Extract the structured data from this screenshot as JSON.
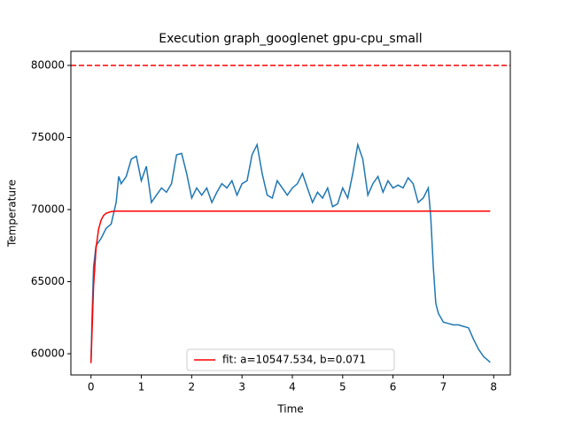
{
  "chart_data": {
    "type": "line",
    "title": "Execution graph_googlenet gpu-cpu_small",
    "xlabel": "Time",
    "ylabel": "Temperature",
    "xlim": [
      -0.4,
      8.33
    ],
    "ylim": [
      58530,
      80980
    ],
    "xticks": [
      0,
      1,
      2,
      3,
      4,
      5,
      6,
      7,
      8
    ],
    "yticks": [
      60000,
      65000,
      70000,
      75000,
      80000
    ],
    "legend": "lower center",
    "hlines": [
      {
        "value": 80000,
        "color": "#ff0000",
        "style": "dashed"
      }
    ],
    "series": [
      {
        "color": "#1f77b4",
        "x": [
          0,
          0.02,
          0.05,
          0.1,
          0.2,
          0.3,
          0.4,
          0.5,
          0.55,
          0.6,
          0.7,
          0.8,
          0.9,
          1.0,
          1.1,
          1.2,
          1.3,
          1.4,
          1.5,
          1.6,
          1.7,
          1.8,
          1.9,
          2.0,
          2.1,
          2.2,
          2.3,
          2.4,
          2.5,
          2.6,
          2.7,
          2.8,
          2.9,
          3.0,
          3.1,
          3.2,
          3.3,
          3.4,
          3.5,
          3.6,
          3.7,
          3.8,
          3.9,
          4.0,
          4.1,
          4.2,
          4.3,
          4.4,
          4.5,
          4.6,
          4.7,
          4.8,
          4.9,
          5.0,
          5.1,
          5.2,
          5.3,
          5.4,
          5.5,
          5.6,
          5.7,
          5.8,
          5.9,
          6.0,
          6.1,
          6.2,
          6.3,
          6.4,
          6.5,
          6.6,
          6.7,
          6.75,
          6.8,
          6.85,
          6.9,
          7.0,
          7.1,
          7.2,
          7.3,
          7.4,
          7.5,
          7.6,
          7.7,
          7.8,
          7.9,
          7.93
        ],
        "values": [
          59400,
          62500,
          66000,
          67500,
          68000,
          68700,
          69000,
          70500,
          72300,
          71800,
          72300,
          73500,
          73700,
          72000,
          73000,
          70500,
          71000,
          71500,
          71200,
          71800,
          73800,
          73900,
          72500,
          70800,
          71500,
          71000,
          71500,
          70500,
          71200,
          71800,
          71500,
          72000,
          71000,
          71800,
          72000,
          73800,
          74500,
          72500,
          71000,
          70800,
          72000,
          71500,
          71000,
          71500,
          71800,
          72500,
          71500,
          70500,
          71200,
          70800,
          71500,
          70200,
          70400,
          71500,
          70800,
          72500,
          74500,
          73500,
          71000,
          71800,
          72300,
          71200,
          72000,
          71500,
          71700,
          71500,
          72200,
          71800,
          70500,
          70800,
          71500,
          69500,
          66000,
          63500,
          62800,
          62200,
          62100,
          62000,
          62000,
          61900,
          61800,
          61000,
          60300,
          59800,
          59500,
          59400
        ]
      },
      {
        "name": "fit: a=10547.534, b=0.071",
        "color": "#ff0000",
        "x": [
          0,
          0.05,
          0.1,
          0.15,
          0.2,
          0.25,
          0.3,
          0.4,
          0.5,
          1,
          7.93
        ],
        "values": [
          59352,
          64680,
          67320,
          68620,
          69268,
          69587,
          69745,
          69861,
          69891,
          69899,
          69899
        ]
      }
    ]
  }
}
